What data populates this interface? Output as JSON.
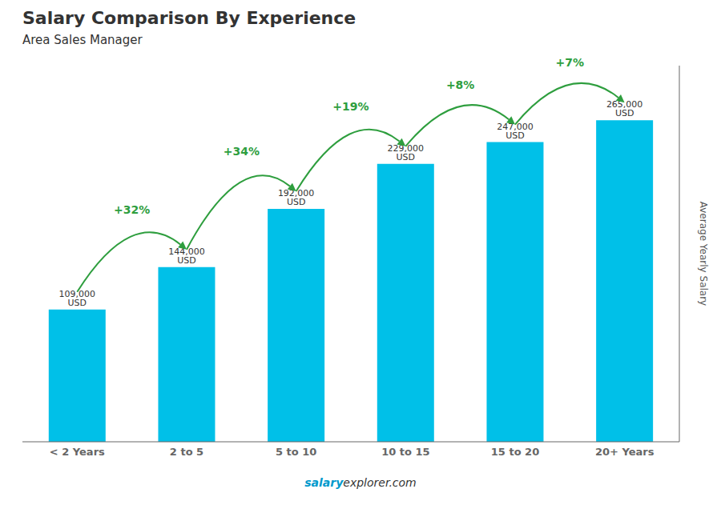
{
  "chart_data": {
    "type": "bar",
    "title": "Salary Comparison By Experience",
    "subtitle": "Area Sales Manager",
    "categories": [
      "< 2 Years",
      "2 to 5",
      "5 to 10",
      "10 to 15",
      "15 to 20",
      "20+ Years"
    ],
    "values": [
      109000,
      144000,
      192000,
      229000,
      247000,
      265000
    ],
    "value_labels": [
      "109,000 USD",
      "144,000 USD",
      "192,000 USD",
      "229,000 USD",
      "247,000 USD",
      "265,000 USD"
    ],
    "data_labels": true,
    "annotations": [
      "+32%",
      "+34%",
      "+19%",
      "+8%",
      "+7%"
    ],
    "ylabel": "Average Yearly Salary",
    "footer": [
      "salary",
      "explorer.com"
    ],
    "color": "#00c0e8",
    "ylim": [
      0,
      310000
    ],
    "grid": false,
    "tick_labels": "x"
  }
}
